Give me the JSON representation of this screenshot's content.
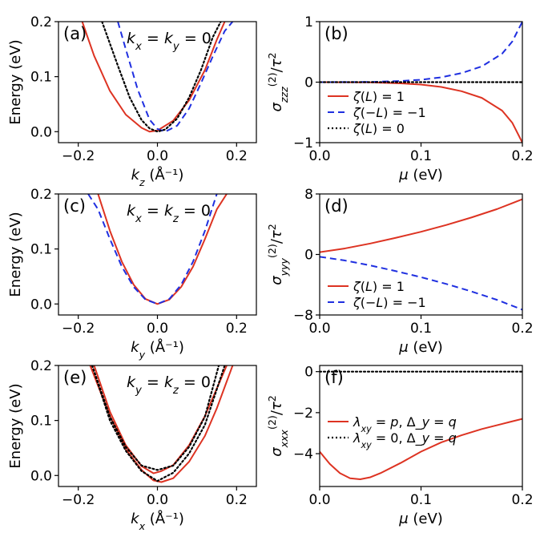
{
  "colors": {
    "red": "#dd3322",
    "blue": "#1f2fe0",
    "black": "#000000"
  },
  "chart_data": [
    {
      "id": "a",
      "type": "line",
      "panel_label": "(a)",
      "annotation": "k_x = k_y = 0",
      "xlabel": "k_z (Å⁻¹)",
      "ylabel": "Energy (eV)",
      "xlim": [
        -0.25,
        0.25
      ],
      "ylim": [
        -0.02,
        0.2
      ],
      "xticks": [
        -0.2,
        0.0,
        0.2
      ],
      "xtick_labels": [
        "−0.2",
        "0.0",
        "0.2"
      ],
      "yticks": [
        0.0,
        0.1,
        0.2
      ],
      "ytick_labels": [
        "0.0",
        "0.1",
        "0.2"
      ],
      "series": [
        {
          "color": "red",
          "style": "solid",
          "x": [
            -0.19,
            -0.16,
            -0.12,
            -0.08,
            -0.04,
            -0.02,
            0.0,
            0.04,
            0.08,
            0.12,
            0.15,
            0.17
          ],
          "y": [
            0.2,
            0.138,
            0.074,
            0.031,
            0.007,
            0.0,
            0.002,
            0.02,
            0.057,
            0.112,
            0.167,
            0.2
          ]
        },
        {
          "color": "blue",
          "style": "dashed",
          "x": [
            -0.1,
            -0.08,
            -0.05,
            -0.02,
            0.0,
            0.02,
            0.05,
            0.08,
            0.11,
            0.14,
            0.17,
            0.19
          ],
          "y": [
            0.2,
            0.15,
            0.077,
            0.022,
            0.005,
            0.0,
            0.011,
            0.042,
            0.088,
            0.137,
            0.183,
            0.2
          ]
        },
        {
          "color": "black",
          "style": "dotted",
          "x": [
            -0.14,
            -0.1,
            -0.07,
            -0.04,
            -0.02,
            0.0,
            0.02,
            0.05,
            0.08,
            0.11,
            0.14,
            0.16
          ],
          "y": [
            0.2,
            0.12,
            0.062,
            0.021,
            0.006,
            0.0,
            0.004,
            0.024,
            0.062,
            0.112,
            0.172,
            0.2
          ]
        }
      ]
    },
    {
      "id": "b",
      "type": "line",
      "panel_label": "(b)",
      "xlabel": "μ (eV)",
      "ylabel": "σ⁽²⁾_zzz / τ²",
      "xlim": [
        0,
        0.2
      ],
      "ylim": [
        -1,
        1
      ],
      "xticks": [
        0.0,
        0.1,
        0.2
      ],
      "xtick_labels": [
        "0.0",
        "0.1",
        "0.2"
      ],
      "yticks": [
        -1,
        0,
        1
      ],
      "ytick_labels": [
        "−1",
        "0",
        "1"
      ],
      "legend": [
        {
          "label": "ζ(L) = 1",
          "color": "red",
          "style": "solid"
        },
        {
          "label": "ζ(−L) = −1",
          "color": "blue",
          "style": "dashed"
        },
        {
          "label": "ζ(L) = 0",
          "color": "black",
          "style": "dotted"
        }
      ],
      "legend_loc": "lower-left",
      "series": [
        {
          "color": "red",
          "style": "solid",
          "x": [
            0.0,
            0.05,
            0.08,
            0.1,
            0.12,
            0.14,
            0.16,
            0.18,
            0.19,
            0.2
          ],
          "y": [
            0.0,
            -0.003,
            -0.02,
            -0.04,
            -0.08,
            -0.15,
            -0.26,
            -0.47,
            -0.67,
            -1.0
          ]
        },
        {
          "color": "blue",
          "style": "dashed",
          "x": [
            0.0,
            0.05,
            0.08,
            0.1,
            0.12,
            0.14,
            0.16,
            0.18,
            0.19,
            0.2
          ],
          "y": [
            0.0,
            0.003,
            0.02,
            0.04,
            0.08,
            0.15,
            0.26,
            0.47,
            0.67,
            1.0
          ]
        },
        {
          "color": "black",
          "style": "dotted",
          "x": [
            0.0,
            0.2
          ],
          "y": [
            0.0,
            0.0
          ]
        }
      ]
    },
    {
      "id": "c",
      "type": "line",
      "panel_label": "(c)",
      "annotation": "k_x = k_z = 0",
      "xlabel": "k_y (Å⁻¹)",
      "ylabel": "Energy (eV)",
      "xlim": [
        -0.25,
        0.25
      ],
      "ylim": [
        -0.02,
        0.2
      ],
      "xticks": [
        -0.2,
        0.0,
        0.2
      ],
      "xtick_labels": [
        "−0.2",
        "0.0",
        "0.2"
      ],
      "yticks": [
        0.0,
        0.1,
        0.2
      ],
      "ytick_labels": [
        "0.0",
        "0.1",
        "0.2"
      ],
      "series": [
        {
          "color": "red",
          "style": "solid",
          "x": [
            -0.15,
            -0.12,
            -0.09,
            -0.06,
            -0.03,
            0.0,
            0.03,
            0.06,
            0.09,
            0.12,
            0.15,
            0.175
          ],
          "y": [
            0.2,
            0.133,
            0.077,
            0.035,
            0.009,
            0.0,
            0.008,
            0.031,
            0.068,
            0.118,
            0.172,
            0.2
          ]
        },
        {
          "color": "blue",
          "style": "dashed",
          "x": [
            -0.175,
            -0.15,
            -0.12,
            -0.09,
            -0.06,
            -0.03,
            0.0,
            0.03,
            0.06,
            0.09,
            0.12,
            0.15
          ],
          "y": [
            0.2,
            0.172,
            0.118,
            0.068,
            0.031,
            0.008,
            0.0,
            0.009,
            0.035,
            0.077,
            0.133,
            0.2
          ]
        }
      ]
    },
    {
      "id": "d",
      "type": "line",
      "panel_label": "(d)",
      "xlabel": "μ (eV)",
      "ylabel": "σ⁽²⁾_yyy / τ²",
      "xlim": [
        0,
        0.2
      ],
      "ylim": [
        -8,
        8
      ],
      "xticks": [
        0.0,
        0.1,
        0.2
      ],
      "xtick_labels": [
        "0.0",
        "0.1",
        "0.2"
      ],
      "yticks": [
        -8,
        0,
        8
      ],
      "ytick_labels": [
        "−8",
        "0",
        "8"
      ],
      "legend": [
        {
          "label": "ζ(L) = 1",
          "color": "red",
          "style": "solid"
        },
        {
          "label": "ζ(−L) = −1",
          "color": "blue",
          "style": "dashed"
        }
      ],
      "legend_loc": "lower-left",
      "series": [
        {
          "color": "red",
          "style": "solid",
          "x": [
            0.0,
            0.025,
            0.05,
            0.075,
            0.1,
            0.125,
            0.15,
            0.175,
            0.2
          ],
          "y": [
            0.3,
            0.8,
            1.45,
            2.2,
            3.0,
            3.9,
            4.9,
            6.0,
            7.3
          ]
        },
        {
          "color": "blue",
          "style": "dashed",
          "x": [
            0.0,
            0.025,
            0.05,
            0.075,
            0.1,
            0.125,
            0.15,
            0.175,
            0.2
          ],
          "y": [
            -0.3,
            -0.8,
            -1.45,
            -2.2,
            -3.0,
            -3.9,
            -4.9,
            -6.0,
            -7.3
          ]
        }
      ]
    },
    {
      "id": "e",
      "type": "line",
      "panel_label": "(e)",
      "annotation": "k_y = k_z = 0",
      "xlabel": "k_x (Å⁻¹)",
      "ylabel": "Energy (eV)",
      "xlim": [
        -0.25,
        0.25
      ],
      "ylim": [
        -0.02,
        0.2
      ],
      "xticks": [
        -0.2,
        0.0,
        0.2
      ],
      "xtick_labels": [
        "−0.2",
        "0.0",
        "0.2"
      ],
      "yticks": [
        0.0,
        0.1,
        0.2
      ],
      "ytick_labels": [
        "0.0",
        "0.1",
        "0.2"
      ],
      "series": [
        {
          "color": "red",
          "style": "solid",
          "x": [
            -0.16,
            -0.12,
            -0.08,
            -0.04,
            -0.01,
            0.01,
            0.04,
            0.08,
            0.12,
            0.15,
            0.175
          ],
          "y": [
            0.2,
            0.116,
            0.055,
            0.017,
            0.004,
            0.008,
            0.019,
            0.055,
            0.108,
            0.158,
            0.2
          ]
        },
        {
          "color": "red",
          "style": "solid",
          "x": [
            -0.17,
            -0.12,
            -0.08,
            -0.04,
            -0.01,
            0.01,
            0.04,
            0.08,
            0.12,
            0.15,
            0.19
          ],
          "y": [
            0.2,
            0.108,
            0.048,
            0.01,
            -0.009,
            -0.012,
            -0.005,
            0.025,
            0.072,
            0.122,
            0.2
          ]
        },
        {
          "color": "black",
          "style": "dotted",
          "x": [
            -0.165,
            -0.12,
            -0.08,
            -0.04,
            0.0,
            0.04,
            0.08,
            0.12,
            0.155
          ],
          "y": [
            0.2,
            0.107,
            0.052,
            0.018,
            0.01,
            0.018,
            0.052,
            0.107,
            0.2
          ]
        },
        {
          "color": "black",
          "style": "dotted",
          "x": [
            -0.165,
            -0.12,
            -0.08,
            -0.04,
            0.0,
            0.04,
            0.08,
            0.12,
            0.17
          ],
          "y": [
            0.2,
            0.1,
            0.045,
            0.008,
            -0.01,
            0.005,
            0.04,
            0.092,
            0.2
          ]
        }
      ]
    },
    {
      "id": "f",
      "type": "line",
      "panel_label": "(f)",
      "xlabel": "μ (eV)",
      "ylabel": "σ⁽²⁾_xxx / τ²",
      "xlim": [
        0,
        0.2
      ],
      "ylim": [
        -5.6,
        0.3
      ],
      "xticks": [
        0.0,
        0.1,
        0.2
      ],
      "xtick_labels": [
        "0.0",
        "0.1",
        "0.2"
      ],
      "yticks": [
        -4,
        -2,
        0
      ],
      "ytick_labels": [
        "−4",
        "−2",
        "0"
      ],
      "legend": [
        {
          "label": "λ_xy = p, Δ_y = q",
          "color": "red",
          "style": "solid"
        },
        {
          "label": "λ_xy = 0, Δ_y = q",
          "color": "black",
          "style": "dotted"
        }
      ],
      "legend_loc": "upper-left",
      "series": [
        {
          "color": "red",
          "style": "solid",
          "x": [
            0.0,
            0.01,
            0.02,
            0.03,
            0.04,
            0.05,
            0.06,
            0.08,
            0.1,
            0.12,
            0.14,
            0.16,
            0.18,
            0.2
          ],
          "y": [
            -3.9,
            -4.5,
            -4.95,
            -5.2,
            -5.25,
            -5.15,
            -4.95,
            -4.45,
            -3.9,
            -3.45,
            -3.1,
            -2.8,
            -2.55,
            -2.3
          ]
        },
        {
          "color": "black",
          "style": "dotted",
          "x": [
            0.0,
            0.2
          ],
          "y": [
            0.0,
            0.0
          ]
        }
      ]
    }
  ]
}
